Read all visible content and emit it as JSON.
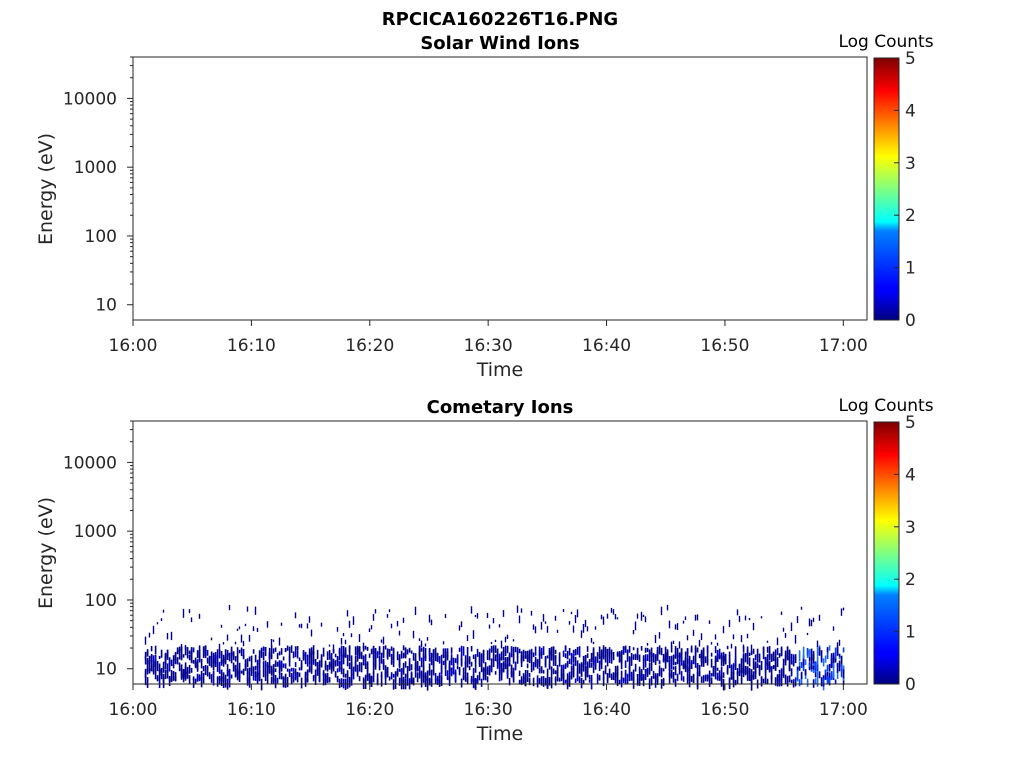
{
  "figure_title": "RPCICA160226T16.PNG",
  "chart_data": [
    {
      "type": "heatmap",
      "title": "Solar Wind Ions",
      "xlabel": "Time",
      "ylabel": "Energy (eV)",
      "x_ticks": [
        "16:00",
        "16:10",
        "16:20",
        "16:30",
        "16:40",
        "16:50",
        "17:00"
      ],
      "x_range": [
        "16:00",
        "17:02"
      ],
      "y_scale": "log",
      "y_ticks": [
        "10",
        "100",
        "1000",
        "10000"
      ],
      "y_range": [
        6,
        40000
      ],
      "colorbar": {
        "label": "Log Counts",
        "ticks": [
          "0",
          "1",
          "2",
          "3",
          "4",
          "5"
        ],
        "range": [
          0,
          5
        ],
        "colormap": "jet"
      },
      "data": "empty"
    },
    {
      "type": "heatmap",
      "title": "Cometary Ions",
      "xlabel": "Time",
      "ylabel": "Energy (eV)",
      "x_ticks": [
        "16:00",
        "16:10",
        "16:20",
        "16:30",
        "16:40",
        "16:50",
        "17:00"
      ],
      "x_range": [
        "16:00",
        "17:02"
      ],
      "y_scale": "log",
      "y_ticks": [
        "10",
        "100",
        "1000",
        "10000"
      ],
      "y_range": [
        6,
        40000
      ],
      "colorbar": {
        "label": "Log Counts",
        "ticks": [
          "0",
          "1",
          "2",
          "3",
          "4",
          "5"
        ],
        "range": [
          0,
          5
        ],
        "colormap": "jet"
      },
      "data": {
        "time_start": "16:01",
        "time_end": "17:00",
        "dense_band_eV": [
          9,
          22
        ],
        "sparse_band_eV": [
          22,
          85
        ],
        "log_counts_typical": 0.2,
        "log_counts_max": 1.2,
        "brighter_interval": [
          "16:56",
          "17:00"
        ]
      }
    }
  ]
}
